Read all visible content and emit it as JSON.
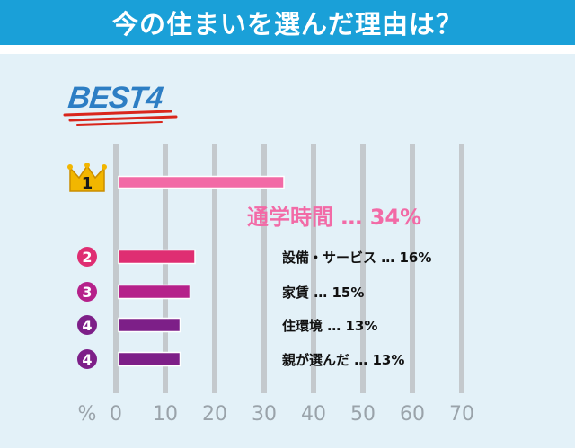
{
  "header": {
    "title": "今の住まいを選んだ理由は？"
  },
  "badge": {
    "text": "BEST4"
  },
  "chart_data": {
    "type": "bar",
    "orientation": "horizontal",
    "title": "今の住まいを選んだ理由は？",
    "xlabel": "%",
    "xlim": [
      0,
      70
    ],
    "xticks": [
      "0",
      "10",
      "20",
      "30",
      "40",
      "50",
      "60",
      "70"
    ],
    "grid": true,
    "categories": [
      "通学時間",
      "設備・サービス",
      "家賃",
      "住環境",
      "親が選んだ"
    ],
    "values": [
      34,
      16,
      15,
      13,
      13
    ],
    "ranks": [
      "1",
      "2",
      "3",
      "4",
      "4"
    ],
    "labels": [
      "通学時間 … 34%",
      "設備・サービス … 16%",
      "家賃 … 15%",
      "住環境 … 13%",
      "親が選んだ … 13%"
    ],
    "colors": [
      "#f26aa6",
      "#df2e72",
      "#b5218a",
      "#7d1f88",
      "#7d1f88"
    ],
    "rank_colors": [
      "#f2b600",
      "#df2e72",
      "#b5218a",
      "#7d1f88",
      "#7d1f88"
    ]
  }
}
